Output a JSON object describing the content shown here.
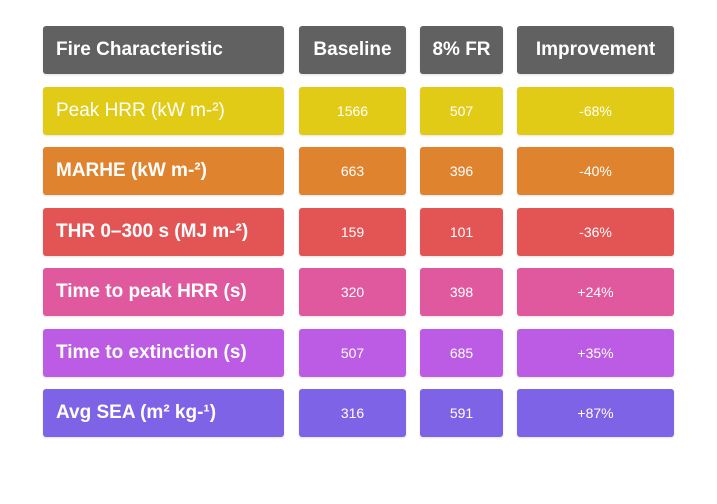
{
  "chart_data": {
    "type": "table",
    "columns": [
      "Fire Characteristic",
      "Baseline",
      "8% FR",
      "Improvement"
    ],
    "rows": [
      {
        "label": "Peak HRR (kW m-²)",
        "baseline": "1566",
        "fr": "507",
        "improvement": "-68%",
        "color": "#E2CB17"
      },
      {
        "label": "MARHE (kW m-²)",
        "baseline": "663",
        "fr": "396",
        "improvement": "-40%",
        "color": "#E0832E"
      },
      {
        "label": "THR 0–300 s (MJ m-²)",
        "baseline": "159",
        "fr": "101",
        "improvement": "-36%",
        "color": "#E35555"
      },
      {
        "label": "Time to peak HRR (s)",
        "baseline": "320",
        "fr": "398",
        "improvement": "+24%",
        "color": "#E0589E"
      },
      {
        "label": "Time to extinction (s)",
        "baseline": "507",
        "fr": "685",
        "improvement": "+35%",
        "color": "#BC5BE3"
      },
      {
        "label": "Avg SEA (m² kg-¹)",
        "baseline": "316",
        "fr": "591",
        "improvement": "+87%",
        "color": "#7E63E6"
      }
    ]
  },
  "header_color": "#616161"
}
